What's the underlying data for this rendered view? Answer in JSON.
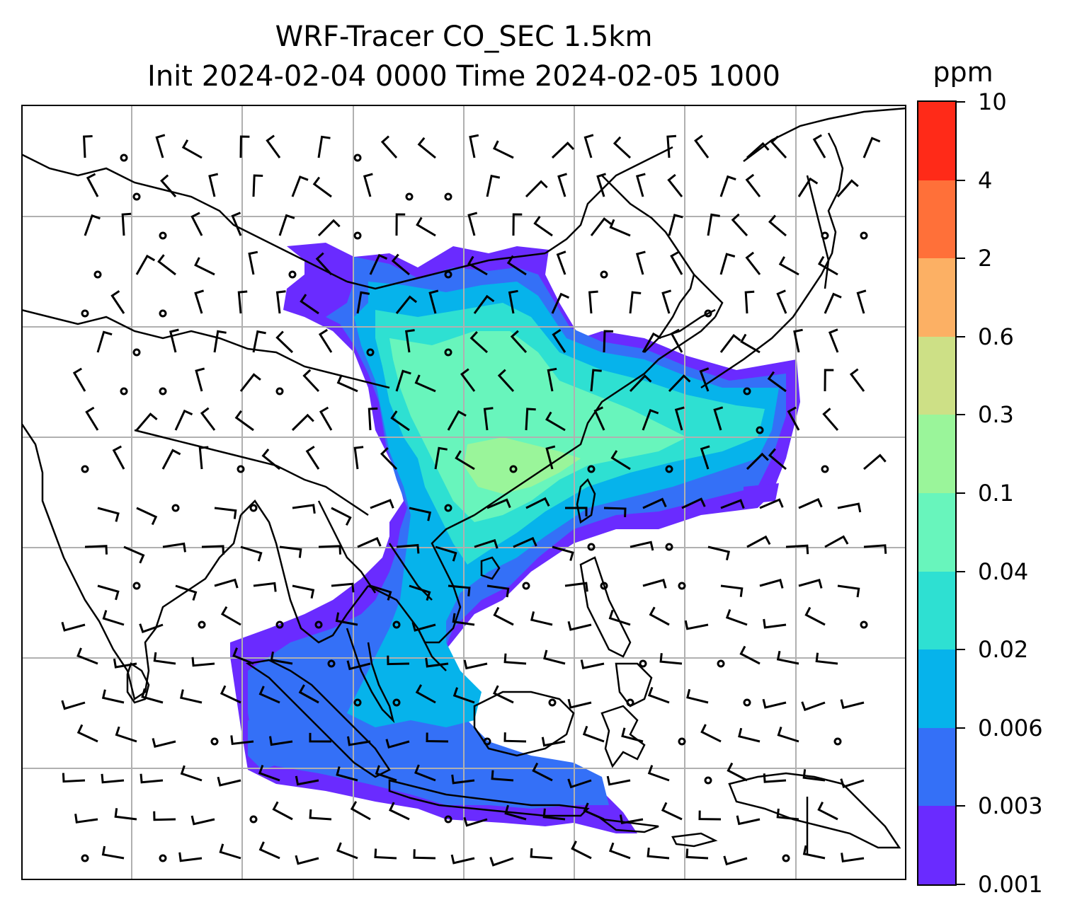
{
  "title": {
    "line1": "WRF-Tracer CO_SEC 1.5km",
    "line2": "Init 2024-02-04 0000 Time 2024-02-05 1000"
  },
  "colorbar": {
    "unit": "ppm",
    "levels": [
      "0.001",
      "0.003",
      "0.006",
      "0.02",
      "0.04",
      "0.1",
      "0.3",
      "0.6",
      "2",
      "4",
      "10"
    ],
    "colors": [
      "#6a2bff",
      "#3470f7",
      "#06b3eb",
      "#2ee0d2",
      "#68f5bc",
      "#9af59a",
      "#cde086",
      "#fcb064",
      "#ff7039",
      "#ff2a18"
    ]
  },
  "map": {
    "plume_colors": {
      "lowest": "#6a2bff",
      "low": "#3470f7",
      "mid_low": "#06b3eb",
      "mid": "#2ee0d2",
      "mid_high": "#68f5bc",
      "high": "#9af59a"
    },
    "gridlines": true,
    "wind_barbs": true
  }
}
